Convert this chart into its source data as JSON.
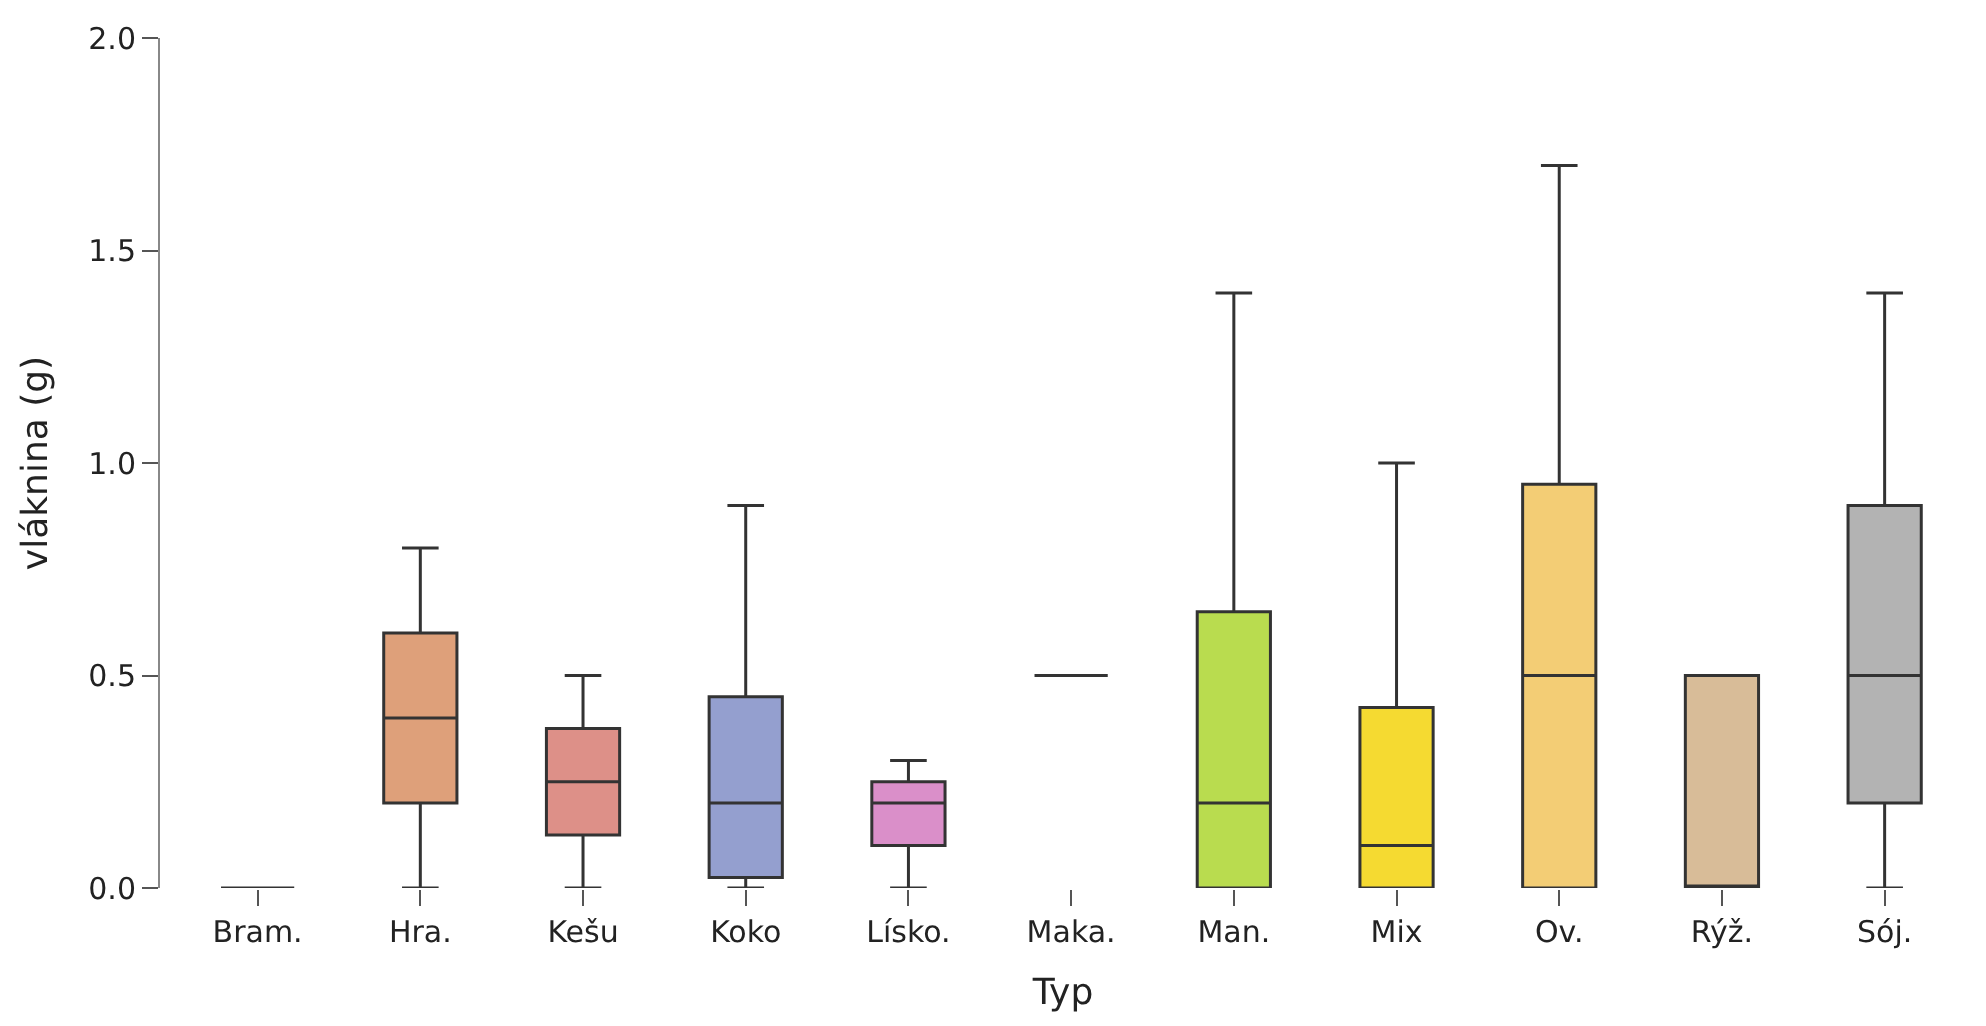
{
  "chart_data": {
    "type": "box",
    "xlabel": "Typ",
    "ylabel": "vláknina (g)",
    "categories": [
      "Bram.",
      "Hra.",
      "Kešu",
      "Koko",
      "Lísko.",
      "Maka.",
      "Man.",
      "Mix",
      "Ov.",
      "Rýž.",
      "Sój."
    ],
    "colors": [
      "#333333",
      "#dea07a",
      "#dd9088",
      "#949fcf",
      "#da8fc9",
      "#333333",
      "#b9dc4f",
      "#f5da31",
      "#f3cd75",
      "#d8bc98",
      "#b3b3b3"
    ],
    "boxes": [
      {
        "low": 0,
        "q1": 0,
        "median": 0,
        "q3": 0,
        "high": 0
      },
      {
        "low": 0,
        "q1": 0.2,
        "median": 0.4,
        "q3": 0.6,
        "high": 0.8
      },
      {
        "low": 0,
        "q1": 0.125,
        "median": 0.25,
        "q3": 0.375,
        "high": 0.5
      },
      {
        "low": 0,
        "q1": 0.025,
        "median": 0.2,
        "q3": 0.45,
        "high": 0.9
      },
      {
        "low": 0,
        "q1": 0.1,
        "median": 0.2,
        "q3": 0.25,
        "high": 0.3
      },
      {
        "low": 0.5,
        "q1": 0.5,
        "median": 0.5,
        "q3": 0.5,
        "high": 0.5
      },
      {
        "low": 0,
        "q1": 0,
        "median": 0.2,
        "q3": 0.65,
        "high": 1.4
      },
      {
        "low": 0,
        "q1": 0,
        "median": 0.1,
        "q3": 0.425,
        "high": 1.0
      },
      {
        "low": 0,
        "q1": 0,
        "median": 0.5,
        "q3": 0.95,
        "high": 1.7
      },
      {
        "low": 0,
        "q1": 0,
        "median": 0,
        "q3": 0.5,
        "high": 0.5
      },
      {
        "low": 0,
        "q1": 0.2,
        "median": 0.5,
        "q3": 0.9,
        "high": 1.4
      }
    ],
    "ylim": [
      0,
      2.0
    ],
    "yticks": [
      {
        "value": 0,
        "label": "0.0"
      },
      {
        "value": 0.5,
        "label": "0.5"
      },
      {
        "value": 1.0,
        "label": "1.0"
      },
      {
        "value": 1.5,
        "label": "1.5"
      },
      {
        "value": 2.0,
        "label": "2.0"
      }
    ],
    "grid": false,
    "legend": false
  }
}
